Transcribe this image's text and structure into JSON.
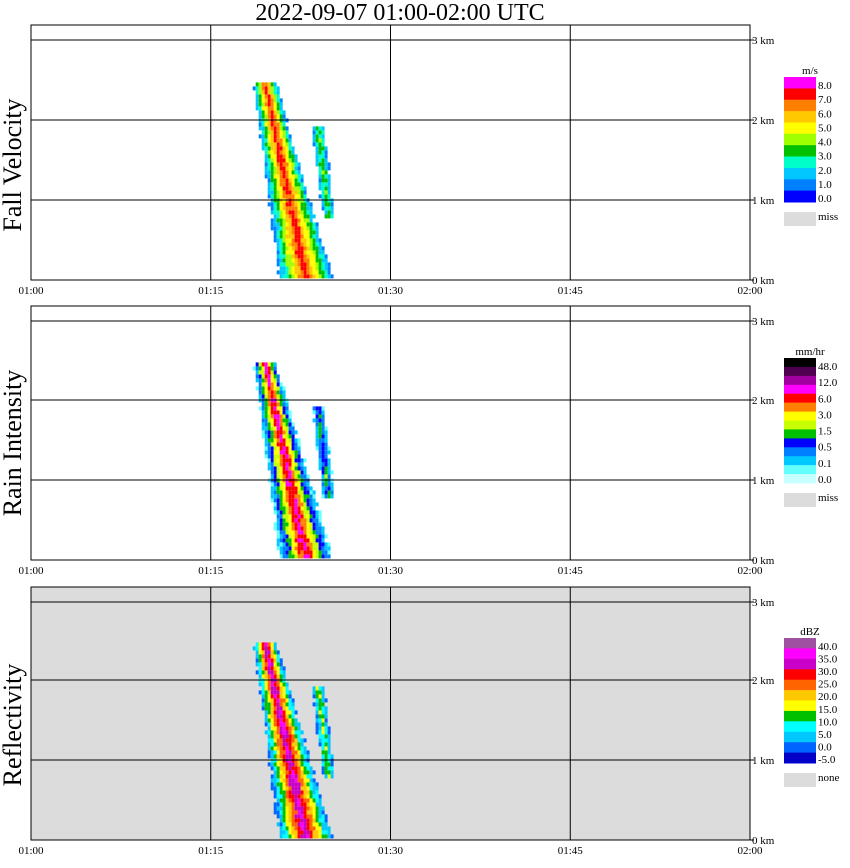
{
  "title": "2022-09-07   01:00-02:00 UTC",
  "chart_data": [
    {
      "type": "heatmap",
      "ylabel": "Fall Velocity",
      "x_ticks": [
        "01:00",
        "01:15",
        "01:30",
        "01:45",
        "02:00"
      ],
      "y_ticks": [
        "0 km",
        "1 km",
        "2 km",
        "3 km"
      ],
      "ylim_km": [
        0,
        3.0
      ],
      "xlim_min": [
        0,
        60
      ],
      "background": "white",
      "colorbar": {
        "unit": "m/s",
        "labels": [
          "8.0",
          "7.0",
          "6.0",
          "5.0",
          "4.0",
          "3.0",
          "2.0",
          "1.0",
          "0.0"
        ],
        "colors": [
          "#ff00ff",
          "#ff0000",
          "#ff8000",
          "#ffc800",
          "#ffff00",
          "#a0ff00",
          "#00c000",
          "#00ffc8",
          "#00c8ff",
          "#0080ff",
          "#0000ff"
        ],
        "miss_label": "miss",
        "miss_color": "#dcdcdc"
      }
    },
    {
      "type": "heatmap",
      "ylabel": "Rain Intensity",
      "x_ticks": [
        "01:00",
        "01:15",
        "01:30",
        "01:45",
        "02:00"
      ],
      "y_ticks": [
        "0 km",
        "1 km",
        "2 km",
        "3 km"
      ],
      "ylim_km": [
        0,
        3.0
      ],
      "xlim_min": [
        0,
        60
      ],
      "background": "white",
      "colorbar": {
        "unit": "mm/hr",
        "labels": [
          "48.0",
          "12.0",
          "6.0",
          "3.0",
          "1.5",
          "0.5",
          "0.1",
          "0.0"
        ],
        "colors": [
          "#000000",
          "#500050",
          "#a000a0",
          "#ff00ff",
          "#ff0000",
          "#ff8000",
          "#ffff00",
          "#c8ff00",
          "#00c000",
          "#0000ff",
          "#0080ff",
          "#00c8ff",
          "#64ffff",
          "#c8ffff"
        ],
        "miss_label": "miss",
        "miss_color": "#dcdcdc"
      }
    },
    {
      "type": "heatmap",
      "ylabel": "Reflectivity",
      "x_ticks": [
        "01:00",
        "01:15",
        "01:30",
        "01:45",
        "02:00"
      ],
      "y_ticks": [
        "0 km",
        "1 km",
        "2 km",
        "3 km"
      ],
      "ylim_km": [
        0,
        3.0
      ],
      "xlim_min": [
        0,
        60
      ],
      "background": "gray",
      "colorbar": {
        "unit": "dBZ",
        "labels": [
          "40.0",
          "35.0",
          "30.0",
          "25.0",
          "20.0",
          "15.0",
          "10.0",
          "5.0",
          "0.0",
          "-5.0"
        ],
        "colors": [
          "#a050a0",
          "#ff00ff",
          "#c800c8",
          "#ff0000",
          "#ff6400",
          "#ffc800",
          "#ffff00",
          "#00c000",
          "#00ffff",
          "#00c8ff",
          "#0064ff",
          "#0000c8"
        ],
        "miss_label": "none",
        "miss_color": "#dcdcdc"
      }
    }
  ]
}
